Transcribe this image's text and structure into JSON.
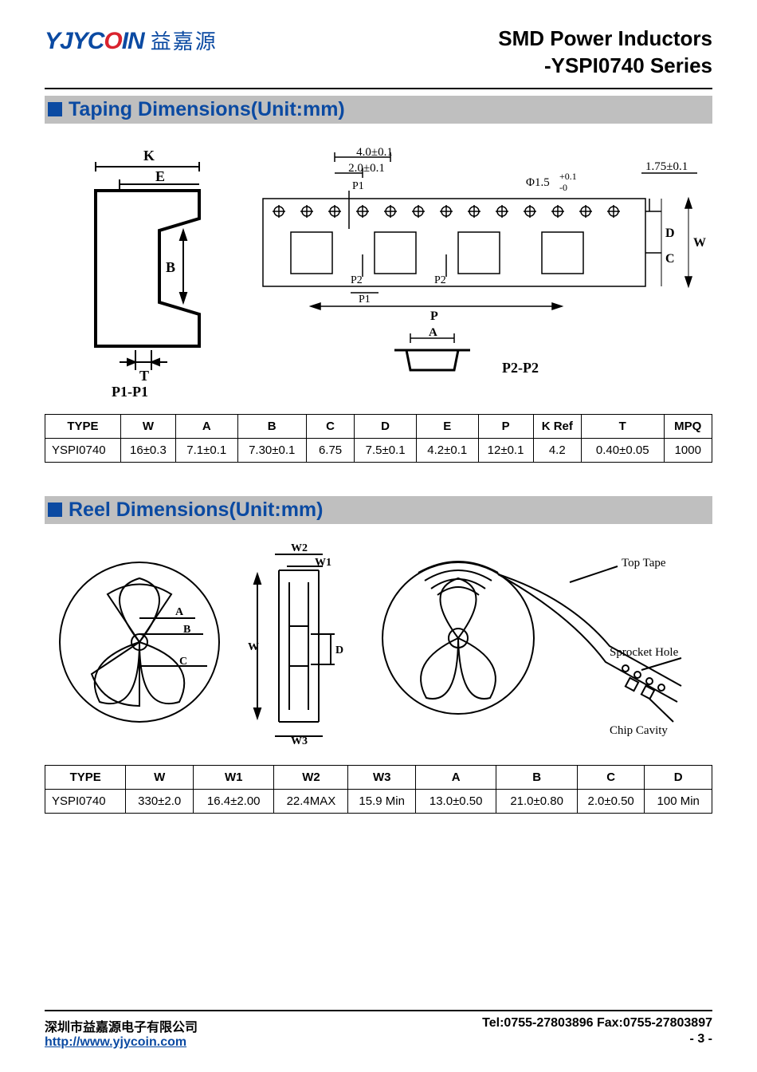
{
  "logo": {
    "brand_en": "YJYCOIN",
    "brand_cn": "益嘉源"
  },
  "doc_title": {
    "line1": "SMD Power Inductors",
    "line2": "-YSPI0740 Series"
  },
  "section1": {
    "title": "Taping Dimensions(Unit:mm)"
  },
  "section2": {
    "title": "Reel Dimensions(Unit:mm)"
  },
  "tape_diagram": {
    "labels": {
      "K": "K",
      "E": "E",
      "B": "B",
      "T": "T",
      "P1P1": "P1-P1",
      "d40": "4.0±0.1",
      "d20": "2.0±0.1",
      "P1": "P1",
      "phi": "Φ1.5",
      "phi_tol_up": "+0.1",
      "phi_tol_dn": "-0",
      "d175": "1.75±0.1",
      "D": "D",
      "W": "W",
      "C": "C",
      "P2": "P2",
      "P": "P",
      "A": "A",
      "P2P2": "P2-P2"
    }
  },
  "reel_diagram": {
    "labels": {
      "A": "A",
      "B": "B",
      "C": "C",
      "W": "W",
      "W1": "W1",
      "W2": "W2",
      "W3": "W3",
      "D": "D",
      "top_tape": "Top Tape",
      "sprocket": "Sprocket Hole",
      "chip_cavity": "Chip Cavity"
    }
  },
  "table1": {
    "columns": [
      "TYPE",
      "W",
      "A",
      "B",
      "C",
      "D",
      "E",
      "P",
      "K Ref",
      "T",
      "MPQ"
    ],
    "rows": [
      [
        "YSPI0740",
        "16±0.3",
        "7.1±0.1",
        "7.30±0.1",
        "6.75",
        "7.5±0.1",
        "4.2±0.1",
        "12±0.1",
        "4.2",
        "0.40±0.05",
        "1000"
      ]
    ],
    "col_widths_pct": [
      11,
      8,
      9,
      10,
      7,
      9,
      9,
      8,
      7,
      12,
      7
    ]
  },
  "table2": {
    "columns": [
      "TYPE",
      "W",
      "W1",
      "W2",
      "W3",
      "A",
      "B",
      "C",
      "D"
    ],
    "rows": [
      [
        "YSPI0740",
        "330±2.0",
        "16.4±2.00",
        "22.4MAX",
        "15.9 Min",
        "13.0±0.50",
        "21.0±0.80",
        "2.0±0.50",
        "100 Min"
      ]
    ],
    "col_widths_pct": [
      12,
      10,
      12,
      11,
      10,
      12,
      12,
      10,
      10
    ]
  },
  "footer": {
    "company_cn": "深圳市益嘉源电子有限公司",
    "url": "http://www.yjycoin.com",
    "tel_fax": "Tel:0755-27803896   Fax:0755-27803897",
    "page": "- 3 -"
  },
  "colors": {
    "brand_blue": "#0b4aa2",
    "brand_red": "#d9232e",
    "section_bg": "#bfbfbf",
    "line": "#000000"
  }
}
